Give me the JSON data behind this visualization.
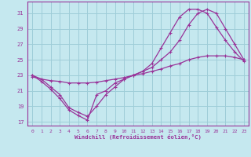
{
  "xlabel": "Windchill (Refroidissement éolien,°C)",
  "background_color": "#c5e8ef",
  "grid_color": "#9ecdd8",
  "line_color": "#993399",
  "xlim": [
    -0.5,
    23.5
  ],
  "ylim": [
    16.5,
    32.5
  ],
  "xticks": [
    0,
    1,
    2,
    3,
    4,
    5,
    6,
    7,
    8,
    9,
    10,
    11,
    12,
    13,
    14,
    15,
    16,
    17,
    18,
    19,
    20,
    21,
    22,
    23
  ],
  "yticks": [
    17,
    19,
    21,
    23,
    25,
    27,
    29,
    31
  ],
  "line1_x": [
    0,
    1,
    2,
    3,
    4,
    5,
    6,
    7,
    8,
    9,
    10,
    11,
    12,
    13,
    14,
    15,
    16,
    17,
    18,
    19,
    20,
    21,
    22,
    23
  ],
  "line1_y": [
    23,
    22.2,
    21.2,
    20.0,
    18.5,
    17.8,
    17.2,
    20.5,
    21.0,
    22.0,
    22.5,
    23.0,
    23.5,
    24.0,
    25.0,
    26.0,
    27.5,
    29.5,
    31.0,
    31.5,
    31.0,
    29.0,
    27.0,
    25.0
  ],
  "line2_x": [
    0,
    1,
    2,
    3,
    4,
    5,
    6,
    7,
    8,
    9,
    10,
    11,
    12,
    13,
    14,
    15,
    16,
    17,
    18,
    19,
    20,
    21,
    22,
    23
  ],
  "line2_y": [
    23,
    22.5,
    21.5,
    20.5,
    18.8,
    18.2,
    17.7,
    19.0,
    20.5,
    21.5,
    22.5,
    23.0,
    23.5,
    24.5,
    26.5,
    28.5,
    30.5,
    31.5,
    31.5,
    31.0,
    29.2,
    27.5,
    26.0,
    24.8
  ],
  "line3_x": [
    0,
    1,
    2,
    3,
    4,
    5,
    6,
    7,
    8,
    9,
    10,
    11,
    12,
    13,
    14,
    15,
    16,
    17,
    18,
    19,
    20,
    21,
    22,
    23
  ],
  "line3_y": [
    22.8,
    22.5,
    22.3,
    22.2,
    22.0,
    22.0,
    22.0,
    22.1,
    22.3,
    22.5,
    22.7,
    23.0,
    23.2,
    23.5,
    23.8,
    24.2,
    24.5,
    25.0,
    25.3,
    25.5,
    25.5,
    25.5,
    25.3,
    25.0
  ]
}
